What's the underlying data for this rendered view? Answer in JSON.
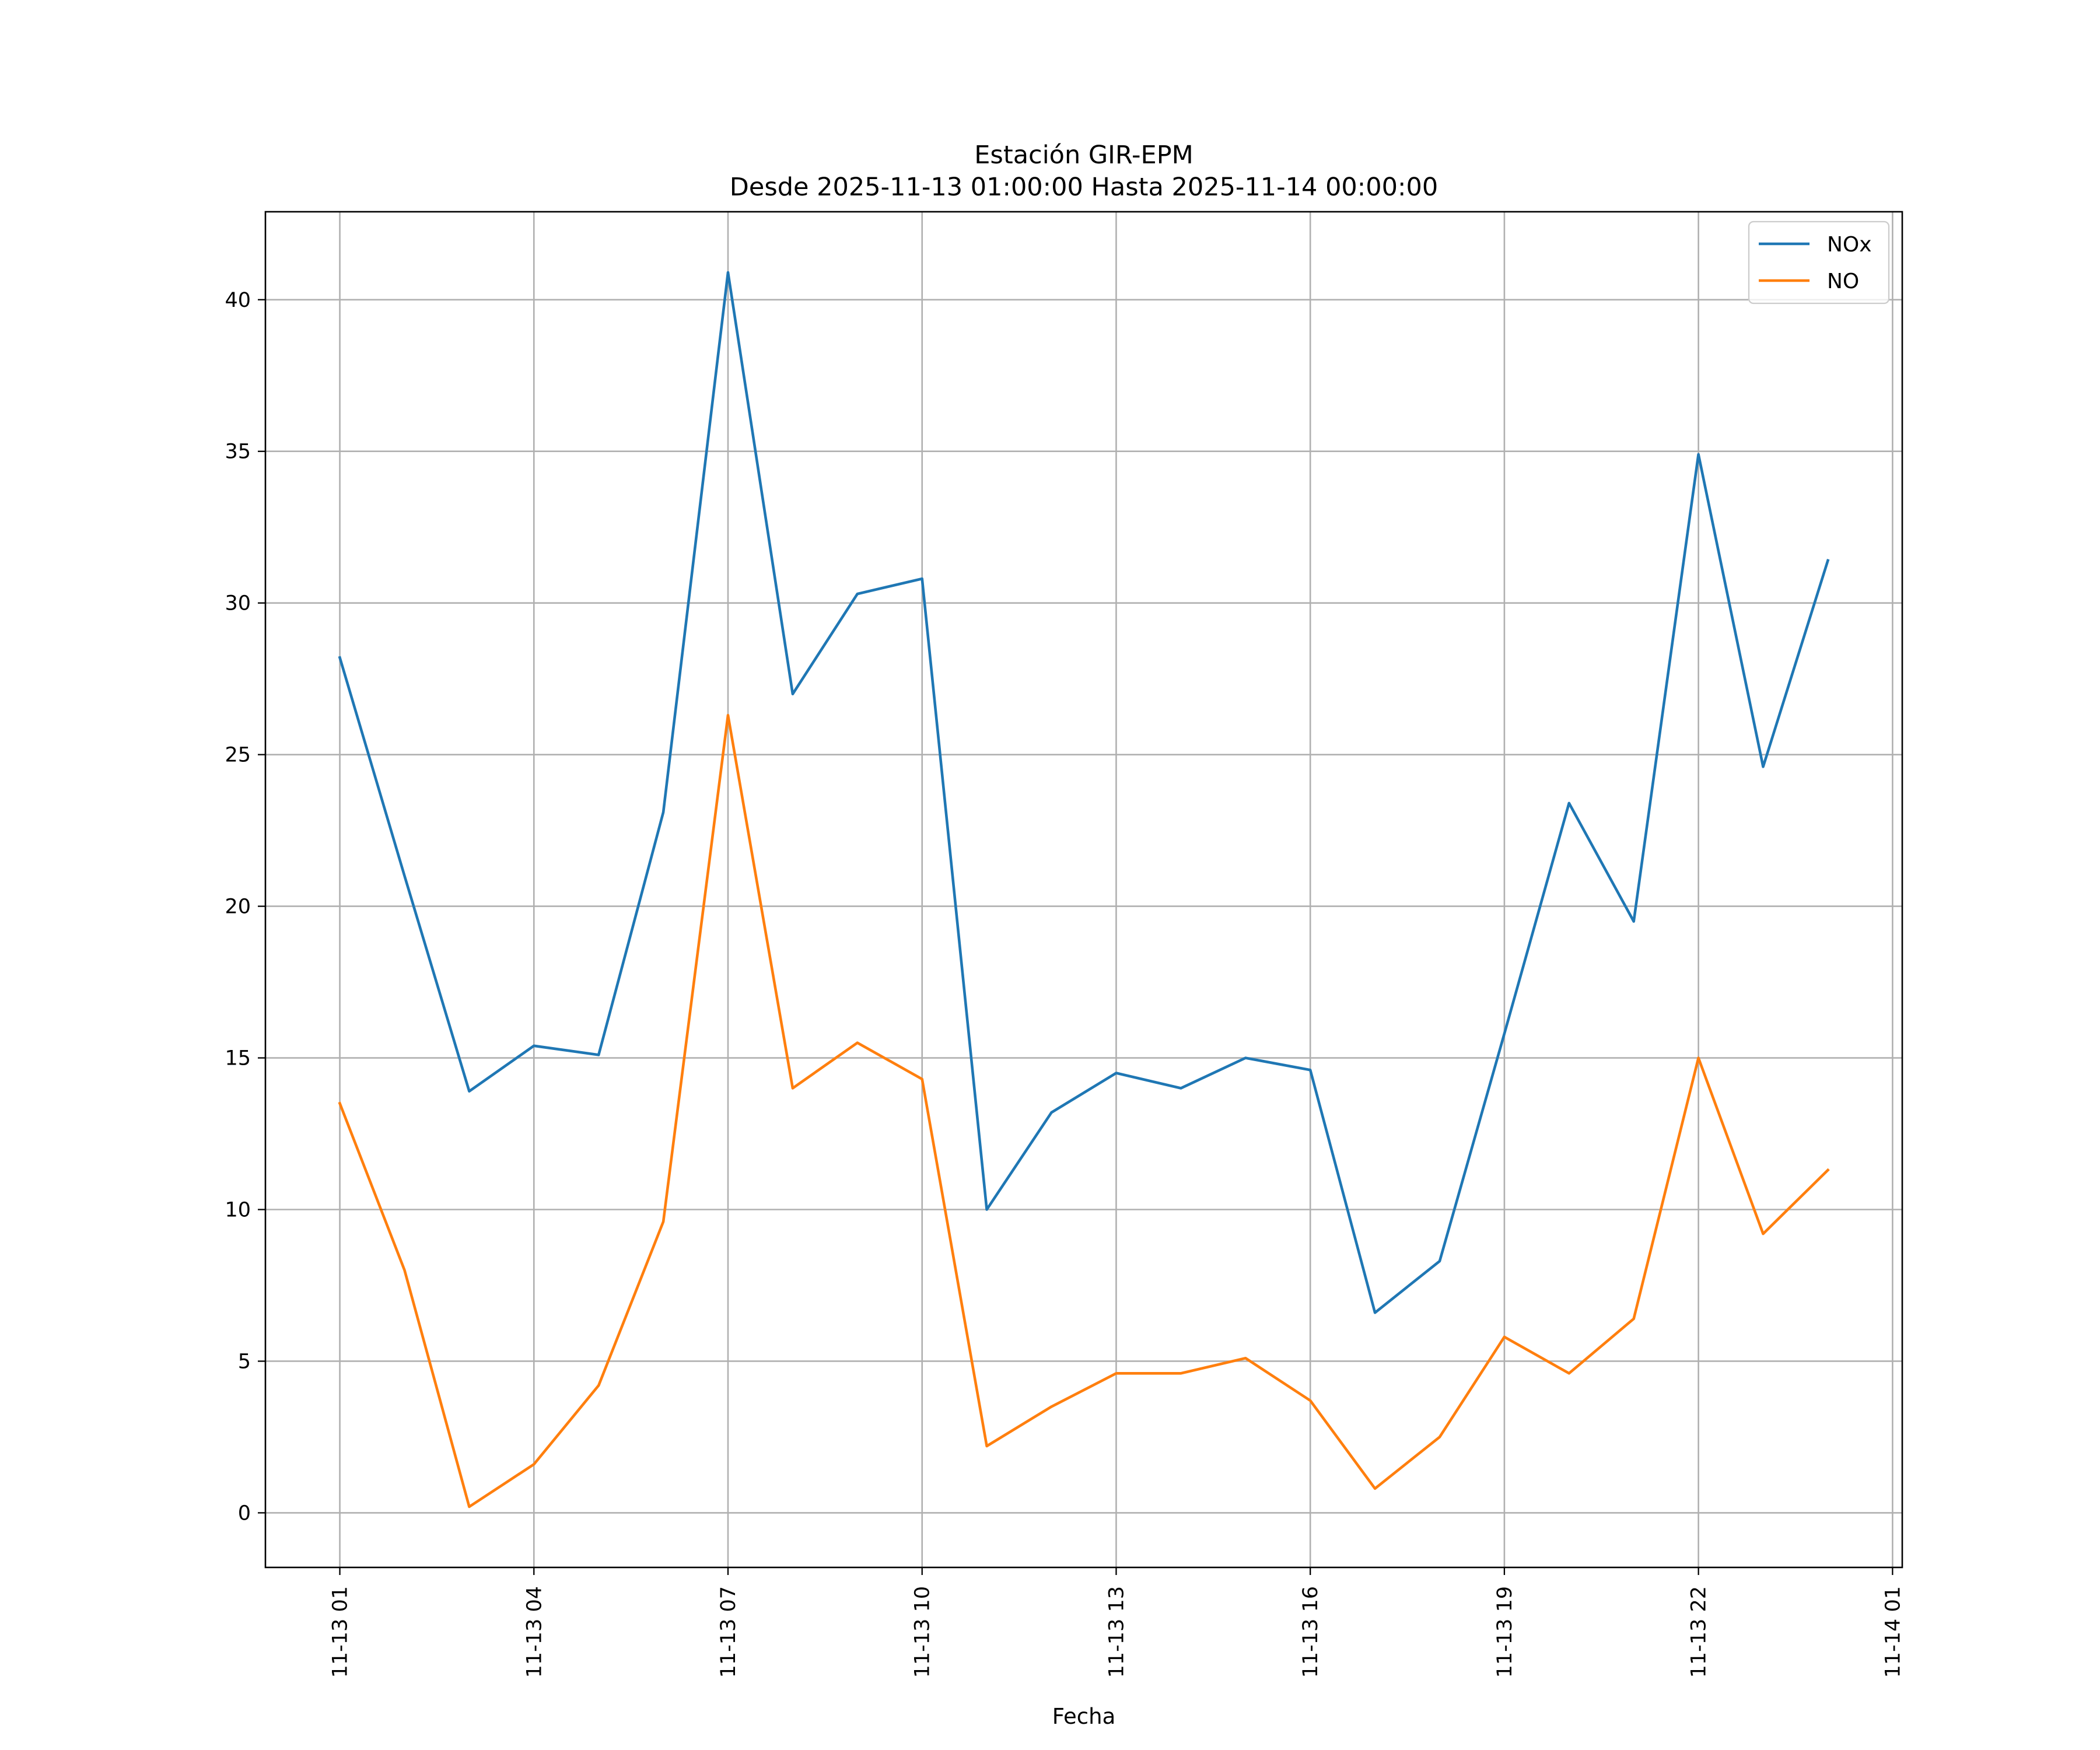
{
  "chart_data": {
    "type": "line",
    "title": "Estación GIR-EPM",
    "subtitle": "Desde 2025-11-13 01:00:00 Hasta 2025-11-14 00:00:00",
    "xlabel": "Fecha",
    "ylabel": "",
    "x": [
      "11-13 01",
      "11-13 02",
      "11-13 03",
      "11-13 04",
      "11-13 05",
      "11-13 06",
      "11-13 07",
      "11-13 08",
      "11-13 09",
      "11-13 10",
      "11-13 11",
      "11-13 12",
      "11-13 13",
      "11-13 14",
      "11-13 15",
      "11-13 16",
      "11-13 17",
      "11-13 18",
      "11-13 19",
      "11-13 20",
      "11-13 21",
      "11-13 22",
      "11-13 23",
      "11-14 00"
    ],
    "x_hours": [
      0,
      1,
      2,
      3,
      4,
      5,
      6,
      7,
      8,
      9,
      10,
      11,
      12,
      13,
      14,
      15,
      16,
      17,
      18,
      19,
      20,
      21,
      22,
      23
    ],
    "xlim_hours": [
      -1.15,
      24.15
    ],
    "xticks_hours": [
      0,
      3,
      6,
      9,
      12,
      15,
      18,
      21,
      24
    ],
    "xtick_labels": [
      "11-13 01",
      "11-13 04",
      "11-13 07",
      "11-13 10",
      "11-13 13",
      "11-13 16",
      "11-13 19",
      "11-13 22",
      "11-14 01"
    ],
    "ylim": [
      -1.8,
      42.9
    ],
    "yticks": [
      0,
      5,
      10,
      15,
      20,
      25,
      30,
      35,
      40
    ],
    "ytick_labels": [
      "0",
      "5",
      "10",
      "15",
      "20",
      "25",
      "30",
      "35",
      "40"
    ],
    "grid": true,
    "legend_position": "top-right",
    "series": [
      {
        "name": "NOx",
        "color": "#1f77b4",
        "values": [
          28.2,
          21.0,
          13.9,
          15.4,
          15.1,
          23.1,
          40.9,
          27.0,
          30.3,
          30.8,
          10.0,
          13.2,
          14.5,
          14.0,
          15.0,
          14.6,
          6.6,
          8.3,
          15.8,
          23.4,
          19.5,
          34.9,
          24.6,
          31.4
        ]
      },
      {
        "name": "NO",
        "color": "#ff7f0e",
        "values": [
          13.5,
          8.0,
          0.2,
          1.6,
          4.2,
          9.6,
          26.3,
          14.0,
          15.5,
          14.3,
          2.2,
          3.5,
          4.6,
          4.6,
          5.1,
          3.7,
          0.8,
          2.5,
          5.8,
          4.6,
          6.4,
          15.0,
          9.2,
          11.3
        ]
      }
    ]
  }
}
